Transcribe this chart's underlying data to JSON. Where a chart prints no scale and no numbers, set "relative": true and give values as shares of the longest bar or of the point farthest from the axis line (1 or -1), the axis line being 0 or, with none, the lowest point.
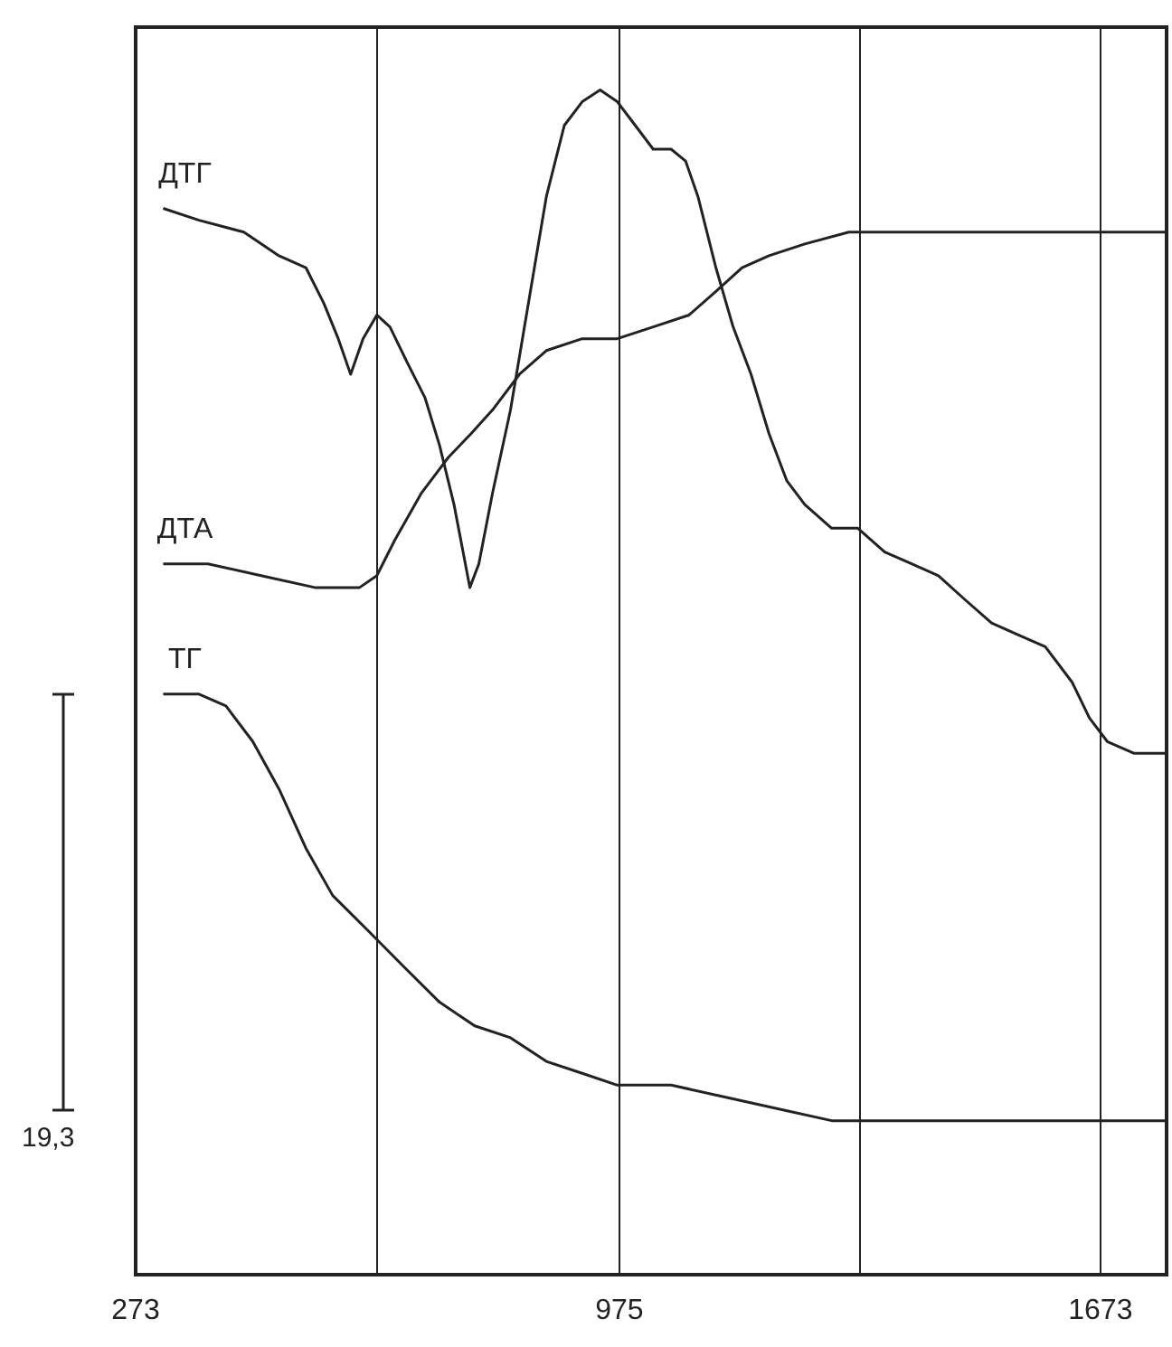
{
  "chart_data": {
    "type": "line",
    "relative": true,
    "xlim": [
      273,
      1769
    ],
    "xticks": [
      273,
      {
        "value": 623,
        "label": null
      },
      975,
      {
        "value": 1323,
        "label": null
      },
      1673
    ],
    "grid": "x",
    "legend": false,
    "marker": "none",
    "line_style": "solid",
    "annotations": [
      "19,3"
    ],
    "series": [
      {
        "name": "ДТГ",
        "color": "#222222",
        "x": [
          313,
          365,
          430,
          481,
          520,
          546,
          567,
          585,
          603,
          623,
          642,
          667,
          693,
          714,
          735,
          758,
          771,
          791,
          817,
          843,
          869,
          895,
          921,
          947,
          972,
          998,
          1024,
          1050,
          1071,
          1089,
          1115,
          1140,
          1166,
          1192,
          1218,
          1244,
          1283,
          1321,
          1360,
          1399,
          1438,
          1476,
          1515,
          1554,
          1593,
          1632,
          1657,
          1683,
          1722,
          1769
        ],
        "values": [
          0.9,
          0.89,
          0.88,
          0.86,
          0.85,
          0.82,
          0.79,
          0.76,
          0.79,
          0.81,
          0.8,
          0.77,
          0.74,
          0.7,
          0.65,
          0.58,
          0.6,
          0.66,
          0.73,
          0.82,
          0.91,
          0.97,
          0.99,
          1,
          0.99,
          0.97,
          0.95,
          0.95,
          0.94,
          0.91,
          0.85,
          0.8,
          0.76,
          0.71,
          0.67,
          0.65,
          0.63,
          0.63,
          0.61,
          0.6,
          0.59,
          0.57,
          0.55,
          0.54,
          0.53,
          0.5,
          0.47,
          0.45,
          0.44,
          0.44
        ]
      },
      {
        "name": "ДТА",
        "color": "#222222",
        "x": [
          313,
          378,
          455,
          533,
          598,
          623,
          649,
          688,
          727,
          760,
          791,
          830,
          869,
          921,
          972,
          1024,
          1076,
          1115,
          1153,
          1192,
          1244,
          1308,
          1438,
          1593,
          1769
        ],
        "values": [
          0.6,
          0.6,
          0.59,
          0.58,
          0.58,
          0.59,
          0.62,
          0.66,
          0.69,
          0.71,
          0.73,
          0.76,
          0.78,
          0.79,
          0.79,
          0.8,
          0.81,
          0.83,
          0.85,
          0.86,
          0.87,
          0.88,
          0.88,
          0.88,
          0.88
        ]
      },
      {
        "name": "ТГ",
        "color": "#222222",
        "x": [
          313,
          365,
          404,
          443,
          481,
          520,
          559,
          611,
          662,
          714,
          765,
          817,
          869,
          921,
          972,
          1050,
          1128,
          1205,
          1283,
          1386,
          1515,
          1645,
          1769
        ],
        "values": [
          0.49,
          0.49,
          0.48,
          0.45,
          0.41,
          0.36,
          0.32,
          0.29,
          0.26,
          0.23,
          0.21,
          0.2,
          0.18,
          0.17,
          0.16,
          0.16,
          0.15,
          0.14,
          0.13,
          0.13,
          0.13,
          0.13,
          0.13
        ]
      }
    ]
  }
}
